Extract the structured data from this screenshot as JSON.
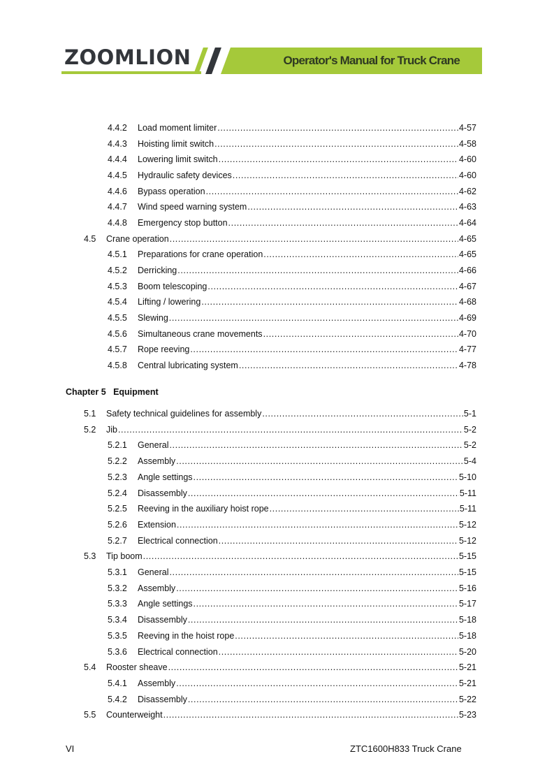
{
  "header": {
    "logo": "ZOOMLION",
    "title": "Operator's Manual for Truck Crane",
    "accent": "#a5c93a",
    "dark": "#33363b"
  },
  "toc_block1": [
    {
      "level": 2,
      "num": "4.4.2",
      "title": "Load moment limiter",
      "page": "4-57"
    },
    {
      "level": 2,
      "num": "4.4.3",
      "title": "Hoisting limit switch",
      "page": "4-58"
    },
    {
      "level": 2,
      "num": "4.4.4",
      "title": "Lowering limit switch",
      "page": "4-60"
    },
    {
      "level": 2,
      "num": "4.4.5",
      "title": "Hydraulic safety devices",
      "page": "4-60"
    },
    {
      "level": 2,
      "num": "4.4.6",
      "title": "Bypass operation",
      "page": "4-62"
    },
    {
      "level": 2,
      "num": "4.4.7",
      "title": "Wind speed warning system",
      "page": "4-63"
    },
    {
      "level": 2,
      "num": "4.4.8",
      "title": "Emergency stop button",
      "page": "4-64"
    },
    {
      "level": 1,
      "num": "4.5",
      "title": "Crane operation",
      "page": "4-65"
    },
    {
      "level": 2,
      "num": "4.5.1",
      "title": "Preparations for crane operation",
      "page": "4-65"
    },
    {
      "level": 2,
      "num": "4.5.2",
      "title": "Derricking",
      "page": "4-66"
    },
    {
      "level": 2,
      "num": "4.5.3",
      "title": "Boom telescoping",
      "page": "4-67"
    },
    {
      "level": 2,
      "num": "4.5.4",
      "title": "Lifting / lowering",
      "page": "4-68"
    },
    {
      "level": 2,
      "num": "4.5.5",
      "title": "Slewing",
      "page": "4-69"
    },
    {
      "level": 2,
      "num": "4.5.6",
      "title": "Simultaneous crane movements",
      "page": "4-70"
    },
    {
      "level": 2,
      "num": "4.5.7",
      "title": "Rope reeving",
      "page": "4-77"
    },
    {
      "level": 2,
      "num": "4.5.8",
      "title": "Central lubricating system",
      "page": "4-78"
    }
  ],
  "chapter": "Chapter 5   Equipment",
  "toc_block2": [
    {
      "level": 1,
      "num": "5.1",
      "title": "Safety technical guidelines for assembly",
      "page": "5-1"
    },
    {
      "level": 1,
      "num": "5.2",
      "title": "Jib",
      "page": "5-2"
    },
    {
      "level": 2,
      "num": "5.2.1",
      "title": "General",
      "page": "5-2"
    },
    {
      "level": 2,
      "num": "5.2.2",
      "title": "Assembly",
      "page": "5-4"
    },
    {
      "level": 2,
      "num": "5.2.3",
      "title": "Angle settings",
      "page": "5-10"
    },
    {
      "level": 2,
      "num": "5.2.4",
      "title": "Disassembly",
      "page": "5-11"
    },
    {
      "level": 2,
      "num": "5.2.5",
      "title": "Reeving in the auxiliary hoist rope",
      "page": "5-11"
    },
    {
      "level": 2,
      "num": "5.2.6",
      "title": "Extension",
      "page": "5-12"
    },
    {
      "level": 2,
      "num": "5.2.7",
      "title": "Electrical connection",
      "page": "5-12"
    },
    {
      "level": 1,
      "num": "5.3",
      "title": "Tip boom",
      "page": "5-15"
    },
    {
      "level": 2,
      "num": "5.3.1",
      "title": "General",
      "page": "5-15"
    },
    {
      "level": 2,
      "num": "5.3.2",
      "title": "Assembly",
      "page": "5-16"
    },
    {
      "level": 2,
      "num": "5.3.3",
      "title": "Angle settings",
      "page": "5-17"
    },
    {
      "level": 2,
      "num": "5.3.4",
      "title": "Disassembly",
      "page": "5-18"
    },
    {
      "level": 2,
      "num": "5.3.5",
      "title": "Reeving in the hoist rope",
      "page": "5-18"
    },
    {
      "level": 2,
      "num": "5.3.6",
      "title": "Electrical connection",
      "page": "5-20"
    },
    {
      "level": 1,
      "num": "5.4",
      "title": "Rooster sheave",
      "page": "5-21"
    },
    {
      "level": 2,
      "num": "5.4.1",
      "title": "Assembly",
      "page": "5-21"
    },
    {
      "level": 2,
      "num": "5.4.2",
      "title": "Disassembly",
      "page": "5-22"
    },
    {
      "level": 1,
      "num": "5.5",
      "title": "Counterweight",
      "page": "5-23"
    }
  ],
  "footer": {
    "page": "VI",
    "model": "ZTC1600H833 Truck Crane"
  }
}
